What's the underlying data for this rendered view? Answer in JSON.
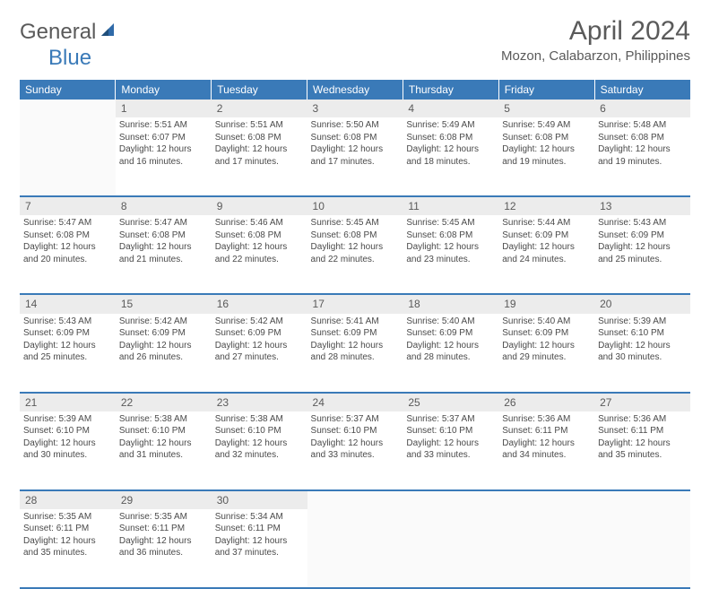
{
  "logo": {
    "general": "General",
    "blue": "Blue"
  },
  "title": "April 2024",
  "location": "Mozon, Calabarzon, Philippines",
  "colors": {
    "header_bg": "#3a7ab8",
    "daynum_bg": "#ececec",
    "text": "#4a4a4a"
  },
  "weekdays": [
    "Sunday",
    "Monday",
    "Tuesday",
    "Wednesday",
    "Thursday",
    "Friday",
    "Saturday"
  ],
  "weeks": [
    {
      "nums": [
        "",
        "1",
        "2",
        "3",
        "4",
        "5",
        "6"
      ],
      "cells": [
        null,
        {
          "sunrise": "Sunrise: 5:51 AM",
          "sunset": "Sunset: 6:07 PM",
          "day1": "Daylight: 12 hours",
          "day2": "and 16 minutes."
        },
        {
          "sunrise": "Sunrise: 5:51 AM",
          "sunset": "Sunset: 6:08 PM",
          "day1": "Daylight: 12 hours",
          "day2": "and 17 minutes."
        },
        {
          "sunrise": "Sunrise: 5:50 AM",
          "sunset": "Sunset: 6:08 PM",
          "day1": "Daylight: 12 hours",
          "day2": "and 17 minutes."
        },
        {
          "sunrise": "Sunrise: 5:49 AM",
          "sunset": "Sunset: 6:08 PM",
          "day1": "Daylight: 12 hours",
          "day2": "and 18 minutes."
        },
        {
          "sunrise": "Sunrise: 5:49 AM",
          "sunset": "Sunset: 6:08 PM",
          "day1": "Daylight: 12 hours",
          "day2": "and 19 minutes."
        },
        {
          "sunrise": "Sunrise: 5:48 AM",
          "sunset": "Sunset: 6:08 PM",
          "day1": "Daylight: 12 hours",
          "day2": "and 19 minutes."
        }
      ]
    },
    {
      "nums": [
        "7",
        "8",
        "9",
        "10",
        "11",
        "12",
        "13"
      ],
      "cells": [
        {
          "sunrise": "Sunrise: 5:47 AM",
          "sunset": "Sunset: 6:08 PM",
          "day1": "Daylight: 12 hours",
          "day2": "and 20 minutes."
        },
        {
          "sunrise": "Sunrise: 5:47 AM",
          "sunset": "Sunset: 6:08 PM",
          "day1": "Daylight: 12 hours",
          "day2": "and 21 minutes."
        },
        {
          "sunrise": "Sunrise: 5:46 AM",
          "sunset": "Sunset: 6:08 PM",
          "day1": "Daylight: 12 hours",
          "day2": "and 22 minutes."
        },
        {
          "sunrise": "Sunrise: 5:45 AM",
          "sunset": "Sunset: 6:08 PM",
          "day1": "Daylight: 12 hours",
          "day2": "and 22 minutes."
        },
        {
          "sunrise": "Sunrise: 5:45 AM",
          "sunset": "Sunset: 6:08 PM",
          "day1": "Daylight: 12 hours",
          "day2": "and 23 minutes."
        },
        {
          "sunrise": "Sunrise: 5:44 AM",
          "sunset": "Sunset: 6:09 PM",
          "day1": "Daylight: 12 hours",
          "day2": "and 24 minutes."
        },
        {
          "sunrise": "Sunrise: 5:43 AM",
          "sunset": "Sunset: 6:09 PM",
          "day1": "Daylight: 12 hours",
          "day2": "and 25 minutes."
        }
      ]
    },
    {
      "nums": [
        "14",
        "15",
        "16",
        "17",
        "18",
        "19",
        "20"
      ],
      "cells": [
        {
          "sunrise": "Sunrise: 5:43 AM",
          "sunset": "Sunset: 6:09 PM",
          "day1": "Daylight: 12 hours",
          "day2": "and 25 minutes."
        },
        {
          "sunrise": "Sunrise: 5:42 AM",
          "sunset": "Sunset: 6:09 PM",
          "day1": "Daylight: 12 hours",
          "day2": "and 26 minutes."
        },
        {
          "sunrise": "Sunrise: 5:42 AM",
          "sunset": "Sunset: 6:09 PM",
          "day1": "Daylight: 12 hours",
          "day2": "and 27 minutes."
        },
        {
          "sunrise": "Sunrise: 5:41 AM",
          "sunset": "Sunset: 6:09 PM",
          "day1": "Daylight: 12 hours",
          "day2": "and 28 minutes."
        },
        {
          "sunrise": "Sunrise: 5:40 AM",
          "sunset": "Sunset: 6:09 PM",
          "day1": "Daylight: 12 hours",
          "day2": "and 28 minutes."
        },
        {
          "sunrise": "Sunrise: 5:40 AM",
          "sunset": "Sunset: 6:09 PM",
          "day1": "Daylight: 12 hours",
          "day2": "and 29 minutes."
        },
        {
          "sunrise": "Sunrise: 5:39 AM",
          "sunset": "Sunset: 6:10 PM",
          "day1": "Daylight: 12 hours",
          "day2": "and 30 minutes."
        }
      ]
    },
    {
      "nums": [
        "21",
        "22",
        "23",
        "24",
        "25",
        "26",
        "27"
      ],
      "cells": [
        {
          "sunrise": "Sunrise: 5:39 AM",
          "sunset": "Sunset: 6:10 PM",
          "day1": "Daylight: 12 hours",
          "day2": "and 30 minutes."
        },
        {
          "sunrise": "Sunrise: 5:38 AM",
          "sunset": "Sunset: 6:10 PM",
          "day1": "Daylight: 12 hours",
          "day2": "and 31 minutes."
        },
        {
          "sunrise": "Sunrise: 5:38 AM",
          "sunset": "Sunset: 6:10 PM",
          "day1": "Daylight: 12 hours",
          "day2": "and 32 minutes."
        },
        {
          "sunrise": "Sunrise: 5:37 AM",
          "sunset": "Sunset: 6:10 PM",
          "day1": "Daylight: 12 hours",
          "day2": "and 33 minutes."
        },
        {
          "sunrise": "Sunrise: 5:37 AM",
          "sunset": "Sunset: 6:10 PM",
          "day1": "Daylight: 12 hours",
          "day2": "and 33 minutes."
        },
        {
          "sunrise": "Sunrise: 5:36 AM",
          "sunset": "Sunset: 6:11 PM",
          "day1": "Daylight: 12 hours",
          "day2": "and 34 minutes."
        },
        {
          "sunrise": "Sunrise: 5:36 AM",
          "sunset": "Sunset: 6:11 PM",
          "day1": "Daylight: 12 hours",
          "day2": "and 35 minutes."
        }
      ]
    },
    {
      "nums": [
        "28",
        "29",
        "30",
        "",
        "",
        "",
        ""
      ],
      "cells": [
        {
          "sunrise": "Sunrise: 5:35 AM",
          "sunset": "Sunset: 6:11 PM",
          "day1": "Daylight: 12 hours",
          "day2": "and 35 minutes."
        },
        {
          "sunrise": "Sunrise: 5:35 AM",
          "sunset": "Sunset: 6:11 PM",
          "day1": "Daylight: 12 hours",
          "day2": "and 36 minutes."
        },
        {
          "sunrise": "Sunrise: 5:34 AM",
          "sunset": "Sunset: 6:11 PM",
          "day1": "Daylight: 12 hours",
          "day2": "and 37 minutes."
        },
        null,
        null,
        null,
        null
      ]
    }
  ]
}
